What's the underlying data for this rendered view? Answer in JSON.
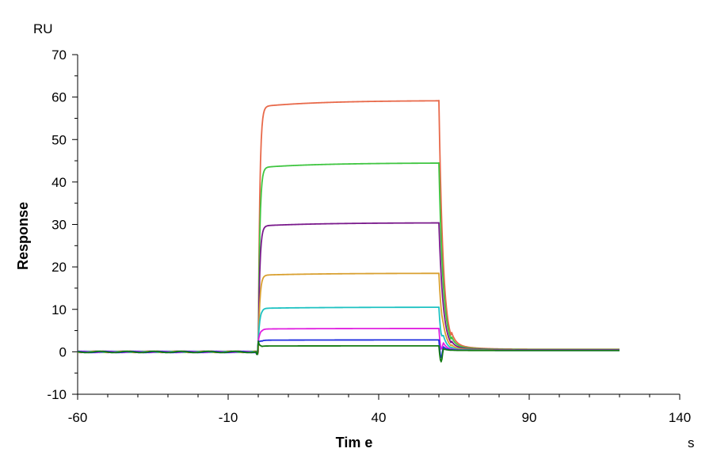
{
  "chart_data": {
    "type": "line",
    "title": "",
    "xlabel": "Tim e",
    "ylabel": "Response",
    "x_unit": "s",
    "y_unit": "RU",
    "xlim": [
      -60,
      140
    ],
    "ylim": [
      -10,
      70
    ],
    "x_ticks": [
      -60,
      -10,
      40,
      90,
      140
    ],
    "y_ticks": [
      -10,
      0,
      10,
      20,
      30,
      40,
      50,
      60,
      70
    ],
    "grid": false,
    "legend": "none",
    "series": [
      {
        "color": "#e8694a",
        "plateau": 59.2
      },
      {
        "color": "#3fc540",
        "plateau": 44.5
      },
      {
        "color": "#7a1a8c",
        "plateau": 30.4
      },
      {
        "color": "#d9a030",
        "plateau": 18.5
      },
      {
        "color": "#1ec2c2",
        "plateau": 10.5
      },
      {
        "color": "#e020e0",
        "plateau": 5.5
      },
      {
        "color": "#1f2ee0",
        "plateau": 2.8
      },
      {
        "color": "#137a13",
        "plateau": 1.4
      }
    ],
    "association_start": 0,
    "dissociation_start": 60,
    "x_end": 120
  }
}
